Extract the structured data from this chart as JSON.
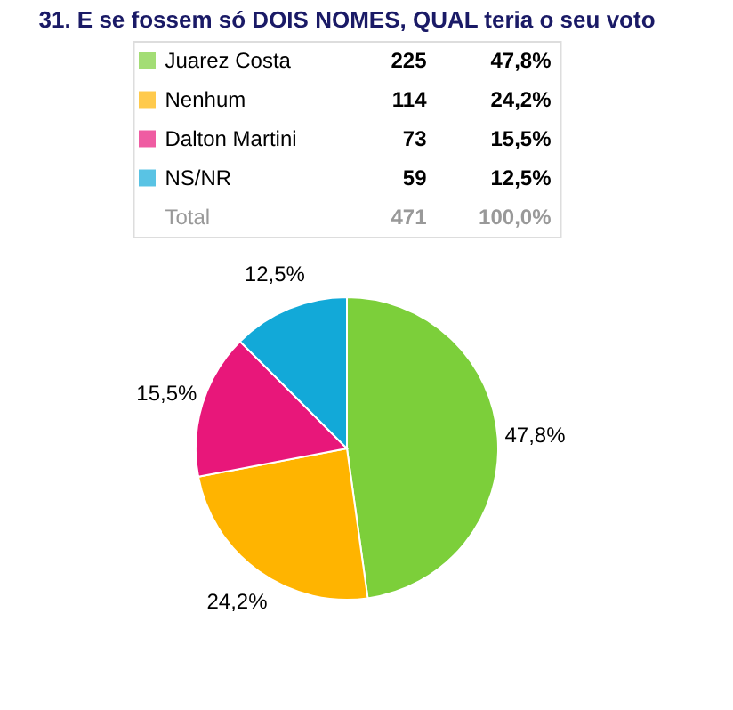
{
  "chart_data": {
    "type": "pie",
    "title": "31. E se fossem só DOIS NOMES, QUAL teria o seu voto",
    "categories": [
      "Juarez Costa",
      "Nenhum",
      "Dalton Martini",
      "NS/NR"
    ],
    "values": [
      47.8,
      24.2,
      15.5,
      12.5
    ],
    "colors": [
      "#7ccf3a",
      "#ffb400",
      "#e8177a",
      "#12a9d8"
    ],
    "value_labels": [
      "47,8%",
      "24,2%",
      "15,5%",
      "12,5%"
    ],
    "legend": "top",
    "annotations": [
      "225",
      "114",
      "73",
      "59",
      "Total",
      "471",
      "100,0%"
    ]
  }
}
